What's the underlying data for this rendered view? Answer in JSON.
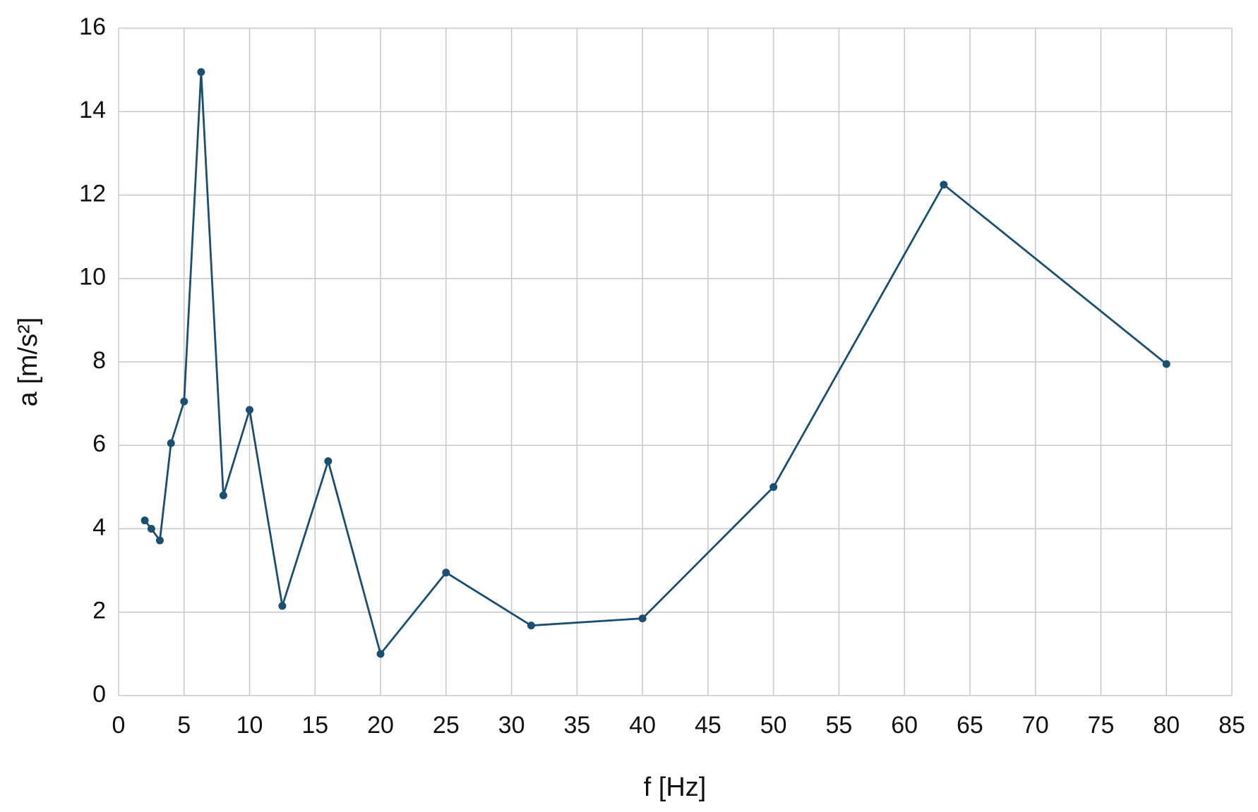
{
  "chart_data": {
    "type": "line",
    "x_label": "f [Hz]",
    "y_label": "a [m/s²]",
    "x": [
      2,
      2.5,
      3.15,
      4,
      5,
      6.3,
      8,
      10,
      12.5,
      16,
      20,
      25,
      31.5,
      40,
      50,
      63,
      80
    ],
    "series": [
      {
        "name": "a",
        "color": "#1b4f72",
        "values": [
          4.2,
          4.0,
          3.72,
          6.05,
          7.05,
          14.95,
          4.8,
          6.85,
          2.15,
          5.62,
          1.0,
          2.95,
          1.68,
          1.85,
          5.0,
          12.25,
          7.95
        ]
      }
    ],
    "xlim": [
      0,
      85
    ],
    "xticks": [
      0,
      5,
      10,
      15,
      20,
      25,
      30,
      35,
      40,
      45,
      50,
      55,
      60,
      65,
      70,
      75,
      80,
      85
    ],
    "ylim": [
      0,
      16
    ],
    "yticks": [
      0,
      2,
      4,
      6,
      8,
      10,
      12,
      14,
      16
    ],
    "grid": true
  }
}
